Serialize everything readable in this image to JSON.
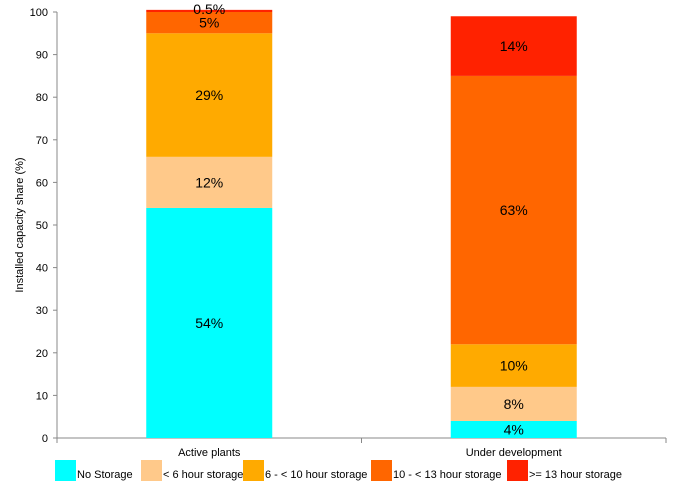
{
  "chart_data": {
    "type": "bar",
    "stacked": true,
    "ylabel": "Installed capacity share (%)",
    "xlabel": "",
    "ylim": [
      0,
      100
    ],
    "yticks": [
      0,
      10,
      20,
      30,
      40,
      50,
      60,
      70,
      80,
      90,
      100
    ],
    "categories": [
      "Active plants",
      "Under development"
    ],
    "grid": false,
    "legend_position": "bottom",
    "series": [
      {
        "name": "No Storage",
        "color": "#00FFFF",
        "values": [
          54,
          4
        ],
        "labels": [
          "54%",
          "4%"
        ]
      },
      {
        "name": "< 6 hour  storage",
        "color": "#FFC98A",
        "values": [
          12,
          8
        ],
        "labels": [
          "12%",
          "8%"
        ]
      },
      {
        "name": "6 - < 10 hour  storage",
        "color": "#FFAA00",
        "values": [
          29,
          10
        ],
        "labels": [
          "29%",
          "10%"
        ]
      },
      {
        "name": "10 - < 13 hour storage",
        "color": "#FF6600",
        "values": [
          5,
          63
        ],
        "labels": [
          "5%",
          "63%"
        ]
      },
      {
        "name": ">= 13 hour storage",
        "color": "#FF2200",
        "values": [
          0.5,
          14
        ],
        "labels": [
          "0.5%",
          "14%"
        ]
      }
    ]
  }
}
